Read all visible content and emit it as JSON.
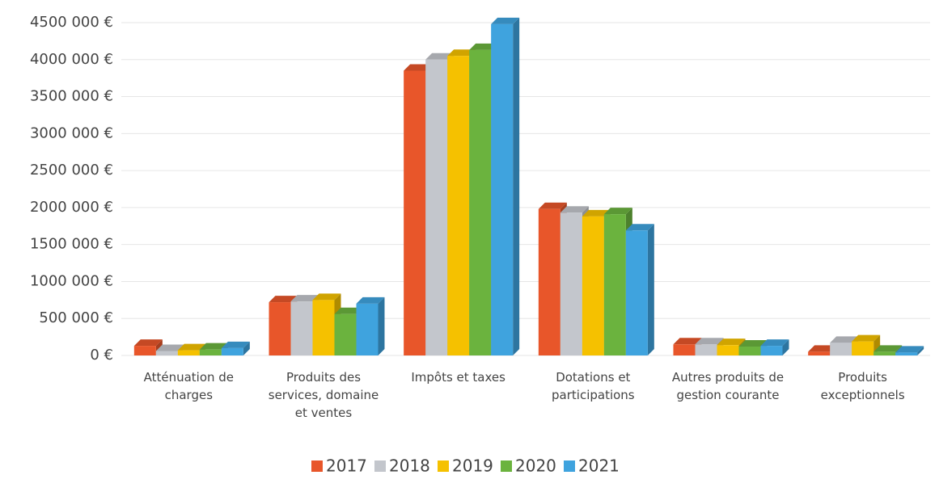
{
  "chart_data": {
    "type": "bar3d",
    "categories": [
      "Atténuation de charges",
      "Produits des services, domaine et ventes",
      "Impôts et taxes",
      "Dotations et participations",
      "Autres produits de gestion courante",
      "Produits exceptionnels"
    ],
    "series": [
      {
        "name": "2017",
        "color": "#e8562a",
        "values": [
          130000,
          720000,
          3850000,
          1980000,
          150000,
          50000
        ]
      },
      {
        "name": "2018",
        "color": "#c3c6cc",
        "values": [
          60000,
          730000,
          4000000,
          1930000,
          150000,
          170000
        ]
      },
      {
        "name": "2019",
        "color": "#f5c100",
        "values": [
          70000,
          750000,
          4050000,
          1880000,
          140000,
          190000
        ]
      },
      {
        "name": "2020",
        "color": "#6bb33e",
        "values": [
          80000,
          560000,
          4130000,
          1910000,
          120000,
          50000
        ]
      },
      {
        "name": "2021",
        "color": "#3fa3de",
        "values": [
          100000,
          700000,
          4480000,
          1690000,
          130000,
          40000
        ]
      }
    ],
    "ylim": [
      0,
      4500000
    ],
    "yticks": [
      {
        "value": 0,
        "label": "0 €"
      },
      {
        "value": 500000,
        "label": "500 000 €"
      },
      {
        "value": 1000000,
        "label": "1000 000 €"
      },
      {
        "value": 1500000,
        "label": "1500 000 €"
      },
      {
        "value": 2000000,
        "label": "2000 000 €"
      },
      {
        "value": 2500000,
        "label": "2500 000 €"
      },
      {
        "value": 3000000,
        "label": "3000 000 €"
      },
      {
        "value": 3500000,
        "label": "3500 000 €"
      },
      {
        "value": 4000000,
        "label": "4000 000 €"
      },
      {
        "value": 4500000,
        "label": "4500 000 €"
      }
    ],
    "grid": true,
    "legend": "bottom"
  }
}
